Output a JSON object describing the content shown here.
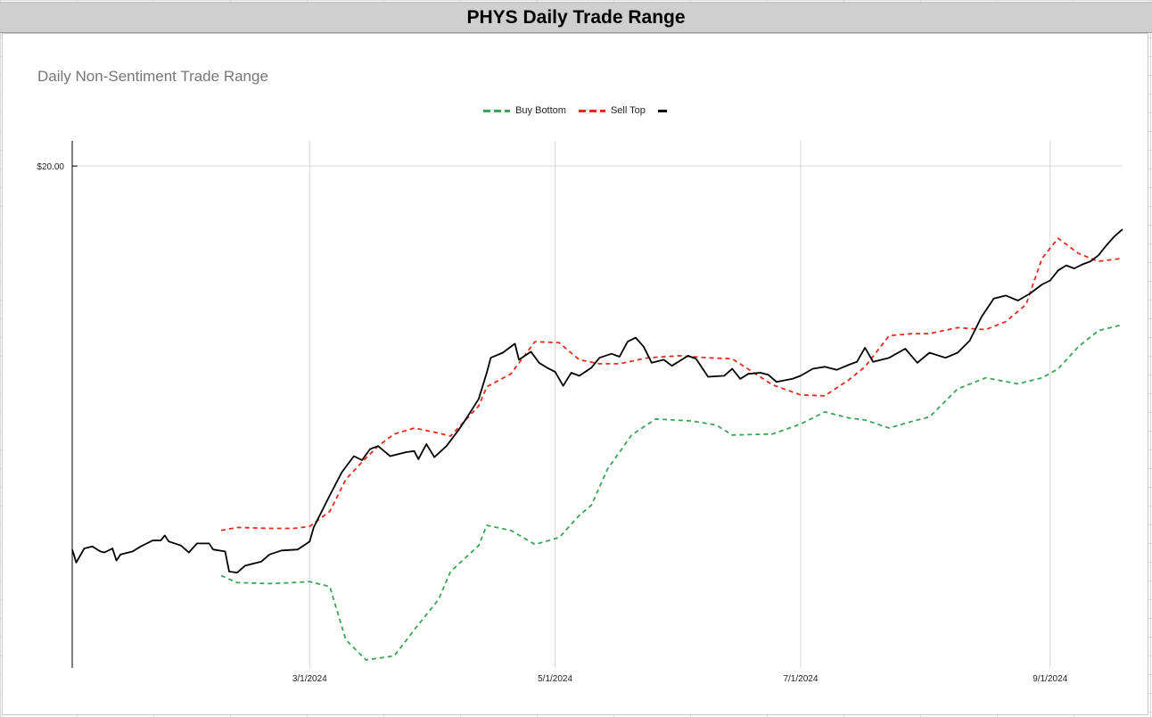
{
  "header": {
    "title": "PHYS Daily Trade Range"
  },
  "colors": {
    "buy": "#3aa655",
    "sell": "#e32b1e",
    "price": "#000000",
    "grid": "#d6d6d6"
  },
  "chart_data": {
    "type": "line",
    "title": "Daily Non-Sentiment Trade Range",
    "xlabel": "",
    "ylabel": "",
    "x_range": [
      "2024-01-02",
      "2024-09-19"
    ],
    "ylim": [
      15.0,
      20.25
    ],
    "y_ticks": [
      {
        "value": 20.0,
        "label": "$20.00"
      }
    ],
    "x_ticks": [
      {
        "date": "2024-03-01",
        "label": "3/1/2024"
      },
      {
        "date": "2024-05-01",
        "label": "5/1/2024"
      },
      {
        "date": "2024-07-01",
        "label": "7/1/2024"
      },
      {
        "date": "2024-09-01",
        "label": "9/1/2024"
      }
    ],
    "legend_position": "top-center",
    "series": [
      {
        "name": "Buy Bottom",
        "style": "dashed",
        "points": [
          [
            "2024-02-08",
            15.92
          ],
          [
            "2024-02-12",
            15.85
          ],
          [
            "2024-02-20",
            15.84
          ],
          [
            "2024-02-26",
            15.85
          ],
          [
            "2024-03-01",
            15.86
          ],
          [
            "2024-03-06",
            15.81
          ],
          [
            "2024-03-10",
            15.28
          ],
          [
            "2024-03-15",
            15.08
          ],
          [
            "2024-03-22",
            15.12
          ],
          [
            "2024-03-27",
            15.38
          ],
          [
            "2024-04-02",
            15.68
          ],
          [
            "2024-04-05",
            15.96
          ],
          [
            "2024-04-12",
            16.22
          ],
          [
            "2024-04-14",
            16.42
          ],
          [
            "2024-04-20",
            16.37
          ],
          [
            "2024-04-26",
            16.23
          ],
          [
            "2024-05-02",
            16.3
          ],
          [
            "2024-05-07",
            16.52
          ],
          [
            "2024-05-10",
            16.62
          ],
          [
            "2024-05-14",
            16.98
          ],
          [
            "2024-05-20",
            17.32
          ],
          [
            "2024-05-26",
            17.48
          ],
          [
            "2024-06-04",
            17.46
          ],
          [
            "2024-06-10",
            17.42
          ],
          [
            "2024-06-14",
            17.32
          ],
          [
            "2024-06-24",
            17.33
          ],
          [
            "2024-07-01",
            17.43
          ],
          [
            "2024-07-07",
            17.55
          ],
          [
            "2024-07-13",
            17.49
          ],
          [
            "2024-07-17",
            17.47
          ],
          [
            "2024-07-23",
            17.39
          ],
          [
            "2024-07-29",
            17.46
          ],
          [
            "2024-08-02",
            17.5
          ],
          [
            "2024-08-09",
            17.78
          ],
          [
            "2024-08-16",
            17.89
          ],
          [
            "2024-08-24",
            17.83
          ],
          [
            "2024-08-30",
            17.89
          ],
          [
            "2024-09-03",
            17.98
          ],
          [
            "2024-09-08",
            18.2
          ],
          [
            "2024-09-13",
            18.36
          ],
          [
            "2024-09-19",
            18.42
          ]
        ]
      },
      {
        "name": "Sell Top",
        "style": "dashed",
        "points": [
          [
            "2024-02-08",
            16.37
          ],
          [
            "2024-02-12",
            16.4
          ],
          [
            "2024-02-20",
            16.39
          ],
          [
            "2024-02-26",
            16.39
          ],
          [
            "2024-03-01",
            16.41
          ],
          [
            "2024-03-06",
            16.56
          ],
          [
            "2024-03-10",
            16.88
          ],
          [
            "2024-03-14",
            17.05
          ],
          [
            "2024-03-18",
            17.21
          ],
          [
            "2024-03-22",
            17.33
          ],
          [
            "2024-03-27",
            17.39
          ],
          [
            "2024-04-02",
            17.34
          ],
          [
            "2024-04-05",
            17.31
          ],
          [
            "2024-04-12",
            17.61
          ],
          [
            "2024-04-14",
            17.8
          ],
          [
            "2024-04-20",
            17.93
          ],
          [
            "2024-04-26",
            18.25
          ],
          [
            "2024-05-02",
            18.24
          ],
          [
            "2024-05-07",
            18.07
          ],
          [
            "2024-05-12",
            18.03
          ],
          [
            "2024-05-17",
            18.03
          ],
          [
            "2024-05-24",
            18.09
          ],
          [
            "2024-06-01",
            18.11
          ],
          [
            "2024-06-08",
            18.09
          ],
          [
            "2024-06-14",
            18.08
          ],
          [
            "2024-06-24",
            17.82
          ],
          [
            "2024-07-01",
            17.72
          ],
          [
            "2024-07-07",
            17.71
          ],
          [
            "2024-07-13",
            17.87
          ],
          [
            "2024-07-17",
            18.0
          ],
          [
            "2024-07-23",
            18.31
          ],
          [
            "2024-07-29",
            18.33
          ],
          [
            "2024-08-02",
            18.33
          ],
          [
            "2024-08-09",
            18.39
          ],
          [
            "2024-08-16",
            18.37
          ],
          [
            "2024-08-21",
            18.45
          ],
          [
            "2024-08-26",
            18.62
          ],
          [
            "2024-08-30",
            19.08
          ],
          [
            "2024-09-03",
            19.28
          ],
          [
            "2024-09-08",
            19.13
          ],
          [
            "2024-09-13",
            19.05
          ],
          [
            "2024-09-19",
            19.08
          ]
        ]
      },
      {
        "name": "",
        "style": "solid",
        "points": [
          [
            "2024-01-02",
            16.18
          ],
          [
            "2024-01-03",
            16.05
          ],
          [
            "2024-01-05",
            16.19
          ],
          [
            "2024-01-07",
            16.21
          ],
          [
            "2024-01-09",
            16.16
          ],
          [
            "2024-01-10",
            16.15
          ],
          [
            "2024-01-12",
            16.19
          ],
          [
            "2024-01-13",
            16.07
          ],
          [
            "2024-01-14",
            16.13
          ],
          [
            "2024-01-17",
            16.16
          ],
          [
            "2024-01-19",
            16.21
          ],
          [
            "2024-01-22",
            16.27
          ],
          [
            "2024-01-24",
            16.27
          ],
          [
            "2024-01-25",
            16.32
          ],
          [
            "2024-01-26",
            16.26
          ],
          [
            "2024-01-29",
            16.22
          ],
          [
            "2024-01-31",
            16.15
          ],
          [
            "2024-02-02",
            16.24
          ],
          [
            "2024-02-05",
            16.24
          ],
          [
            "2024-02-06",
            16.18
          ],
          [
            "2024-02-09",
            16.16
          ],
          [
            "2024-02-10",
            15.96
          ],
          [
            "2024-02-12",
            15.95
          ],
          [
            "2024-02-14",
            16.02
          ],
          [
            "2024-02-18",
            16.06
          ],
          [
            "2024-02-20",
            16.13
          ],
          [
            "2024-02-23",
            16.17
          ],
          [
            "2024-02-27",
            16.18
          ],
          [
            "2024-03-01",
            16.26
          ],
          [
            "2024-03-02",
            16.4
          ],
          [
            "2024-03-06",
            16.72
          ],
          [
            "2024-03-09",
            16.95
          ],
          [
            "2024-03-12",
            17.11
          ],
          [
            "2024-03-14",
            17.07
          ],
          [
            "2024-03-16",
            17.18
          ],
          [
            "2024-03-18",
            17.21
          ],
          [
            "2024-03-21",
            17.11
          ],
          [
            "2024-03-23",
            17.13
          ],
          [
            "2024-03-25",
            17.15
          ],
          [
            "2024-03-27",
            17.16
          ],
          [
            "2024-03-28",
            17.08
          ],
          [
            "2024-03-30",
            17.23
          ],
          [
            "2024-04-01",
            17.1
          ],
          [
            "2024-04-04",
            17.21
          ],
          [
            "2024-04-07",
            17.37
          ],
          [
            "2024-04-09",
            17.49
          ],
          [
            "2024-04-12",
            17.68
          ],
          [
            "2024-04-14",
            17.94
          ],
          [
            "2024-04-15",
            18.09
          ],
          [
            "2024-04-18",
            18.14
          ],
          [
            "2024-04-21",
            18.23
          ],
          [
            "2024-04-22",
            18.07
          ],
          [
            "2024-04-25",
            18.15
          ],
          [
            "2024-04-27",
            18.04
          ],
          [
            "2024-04-29",
            17.99
          ],
          [
            "2024-05-01",
            17.95
          ],
          [
            "2024-05-03",
            17.81
          ],
          [
            "2024-05-05",
            17.94
          ],
          [
            "2024-05-07",
            17.91
          ],
          [
            "2024-05-10",
            17.99
          ],
          [
            "2024-05-12",
            18.09
          ],
          [
            "2024-05-15",
            18.13
          ],
          [
            "2024-05-17",
            18.1
          ],
          [
            "2024-05-19",
            18.25
          ],
          [
            "2024-05-21",
            18.29
          ],
          [
            "2024-05-23",
            18.2
          ],
          [
            "2024-05-25",
            18.04
          ],
          [
            "2024-05-28",
            18.07
          ],
          [
            "2024-05-30",
            18.01
          ],
          [
            "2024-06-03",
            18.11
          ],
          [
            "2024-06-05",
            18.08
          ],
          [
            "2024-06-08",
            17.9
          ],
          [
            "2024-06-12",
            17.91
          ],
          [
            "2024-06-14",
            17.98
          ],
          [
            "2024-06-16",
            17.88
          ],
          [
            "2024-06-18",
            17.93
          ],
          [
            "2024-06-21",
            17.94
          ],
          [
            "2024-06-23",
            17.92
          ],
          [
            "2024-06-25",
            17.85
          ],
          [
            "2024-06-29",
            17.88
          ],
          [
            "2024-07-01",
            17.91
          ],
          [
            "2024-07-04",
            17.98
          ],
          [
            "2024-07-07",
            18.0
          ],
          [
            "2024-07-10",
            17.97
          ],
          [
            "2024-07-13",
            18.02
          ],
          [
            "2024-07-15",
            18.05
          ],
          [
            "2024-07-17",
            18.19
          ],
          [
            "2024-07-19",
            18.05
          ],
          [
            "2024-07-23",
            18.09
          ],
          [
            "2024-07-27",
            18.18
          ],
          [
            "2024-07-30",
            18.04
          ],
          [
            "2024-08-02",
            18.14
          ],
          [
            "2024-08-06",
            18.09
          ],
          [
            "2024-08-09",
            18.14
          ],
          [
            "2024-08-12",
            18.26
          ],
          [
            "2024-08-15",
            18.5
          ],
          [
            "2024-08-18",
            18.68
          ],
          [
            "2024-08-21",
            18.71
          ],
          [
            "2024-08-24",
            18.66
          ],
          [
            "2024-08-27",
            18.73
          ],
          [
            "2024-08-30",
            18.82
          ],
          [
            "2024-09-01",
            18.86
          ],
          [
            "2024-09-03",
            18.96
          ],
          [
            "2024-09-05",
            19.01
          ],
          [
            "2024-09-07",
            18.98
          ],
          [
            "2024-09-09",
            19.02
          ],
          [
            "2024-09-11",
            19.05
          ],
          [
            "2024-09-13",
            19.11
          ],
          [
            "2024-09-15",
            19.21
          ],
          [
            "2024-09-17",
            19.3
          ],
          [
            "2024-09-19",
            19.37
          ]
        ]
      }
    ]
  }
}
